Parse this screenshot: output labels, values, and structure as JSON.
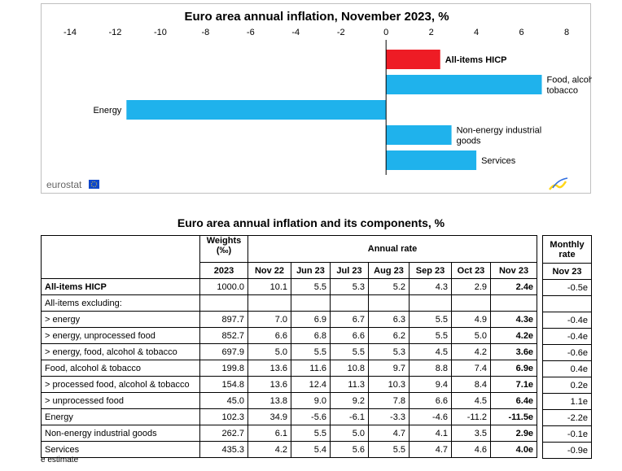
{
  "chart_data": {
    "type": "bar",
    "orientation": "horizontal",
    "title": "Euro area annual inflation, November 2023, %",
    "xlim": [
      -14,
      8
    ],
    "x_ticks": [
      "-14",
      "-12",
      "-10",
      "-8",
      "-6",
      "-4",
      "-2",
      "0",
      "2",
      "4",
      "6",
      "8"
    ],
    "categories": [
      "All-items HICP",
      "Food, alcohol & tobacco",
      "Energy",
      "Non-energy industrial goods",
      "Services"
    ],
    "label_lines": [
      [
        "All-items HICP"
      ],
      [
        "Food, alcohol &",
        "tobacco"
      ],
      [
        "Energy"
      ],
      [
        "Non-energy industrial",
        "goods"
      ],
      [
        "Services"
      ]
    ],
    "values": [
      2.4,
      6.9,
      -11.5,
      2.9,
      4.0
    ],
    "colors": [
      "#ee1c25",
      "#1fb2ec",
      "#1fb2ec",
      "#1fb2ec",
      "#1fb2ec"
    ],
    "grid": false,
    "legend": "none"
  },
  "branding": {
    "logo_text": "eurostat",
    "flag_color": "#0e47cb",
    "flag_star_color": "#ffd617",
    "mark_colors": [
      "#ffd617",
      "#2f6ee0"
    ]
  },
  "table": {
    "title": "Euro area annual inflation and its components, %",
    "weights_header": "Weights",
    "weights_unit": "(‰)",
    "annual_header": "Annual rate",
    "monthly_header": "Monthly",
    "monthly_header2": "rate",
    "weights_year": "2023",
    "months": [
      "Nov 22",
      "Jun 23",
      "Jul 23",
      "Aug 23",
      "Sep 23",
      "Oct 23",
      "Nov 23"
    ],
    "monthly_month": "Nov 23",
    "rows": [
      {
        "label": "All-items HICP",
        "weight": "1000.0",
        "annual": [
          "10.1",
          "5.5",
          "5.3",
          "5.2",
          "4.3",
          "2.9",
          "2.4e"
        ],
        "monthly": "-0.5e"
      },
      {
        "label": "All-items excluding:",
        "weight": "",
        "annual": [
          "",
          "",
          "",
          "",
          "",
          "",
          ""
        ],
        "monthly": ""
      },
      {
        "label": "> energy",
        "weight": "897.7",
        "annual": [
          "7.0",
          "6.9",
          "6.7",
          "6.3",
          "5.5",
          "4.9",
          "4.3e"
        ],
        "monthly": "-0.4e"
      },
      {
        "label": "> energy, unprocessed food",
        "weight": "852.7",
        "annual": [
          "6.6",
          "6.8",
          "6.6",
          "6.2",
          "5.5",
          "5.0",
          "4.2e"
        ],
        "monthly": "-0.4e"
      },
      {
        "label": "> energy, food, alcohol & tobacco",
        "weight": "697.9",
        "annual": [
          "5.0",
          "5.5",
          "5.5",
          "5.3",
          "4.5",
          "4.2",
          "3.6e"
        ],
        "monthly": "-0.6e"
      },
      {
        "label": "Food, alcohol & tobacco",
        "weight": "199.8",
        "annual": [
          "13.6",
          "11.6",
          "10.8",
          "9.7",
          "8.8",
          "7.4",
          "6.9e"
        ],
        "monthly": "0.4e"
      },
      {
        "label": "> processed food, alcohol & tobacco",
        "weight": "154.8",
        "annual": [
          "13.6",
          "12.4",
          "11.3",
          "10.3",
          "9.4",
          "8.4",
          "7.1e"
        ],
        "monthly": "0.2e"
      },
      {
        "label": "> unprocessed food",
        "weight": "45.0",
        "annual": [
          "13.8",
          "9.0",
          "9.2",
          "7.8",
          "6.6",
          "4.5",
          "6.4e"
        ],
        "monthly": "1.1e"
      },
      {
        "label": "Energy",
        "weight": "102.3",
        "annual": [
          "34.9",
          "-5.6",
          "-6.1",
          "-3.3",
          "-4.6",
          "-11.2",
          "-11.5e"
        ],
        "monthly": "-2.2e"
      },
      {
        "label": "Non-energy industrial goods",
        "weight": "262.7",
        "annual": [
          "6.1",
          "5.5",
          "5.0",
          "4.7",
          "4.1",
          "3.5",
          "2.9e"
        ],
        "monthly": "-0.1e"
      },
      {
        "label": "Services",
        "weight": "435.3",
        "annual": [
          "4.2",
          "5.4",
          "5.6",
          "5.5",
          "4.7",
          "4.6",
          "4.0e"
        ],
        "monthly": "-0.9e"
      }
    ],
    "footnote": "e estimate"
  }
}
